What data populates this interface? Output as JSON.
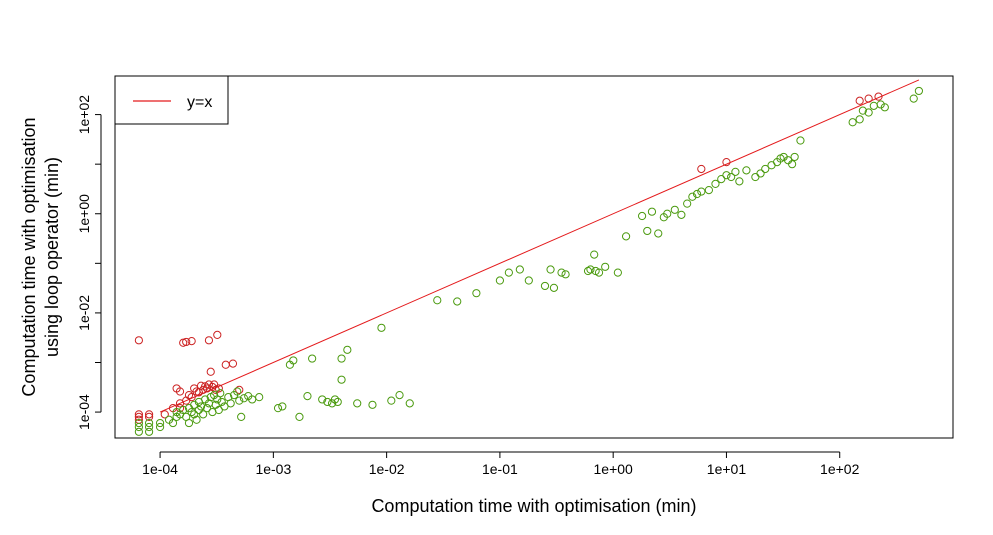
{
  "chart_data": {
    "type": "scatter",
    "title": "",
    "xlabel": "Computation time with optimisation (min)",
    "ylabel": [
      "Computation time with optimisation",
      "using loop operator (min)"
    ],
    "x_scale": "log10",
    "y_scale": "log10",
    "xlim": [
      4e-05,
      1000
    ],
    "ylim": [
      3e-05,
      600
    ],
    "x_ticks": [
      0.0001,
      0.001,
      0.01,
      0.1,
      1,
      10,
      100
    ],
    "x_tick_labels": [
      "1e-04",
      "1e-03",
      "1e-02",
      "1e-01",
      "1e+00",
      "1e+01",
      "1e+02"
    ],
    "y_ticks": [
      0.0001,
      0.001,
      0.01,
      0.1,
      1,
      10,
      100
    ],
    "y_tick_labels": [
      "1e-04",
      "",
      "1e-02",
      "",
      "1e+00",
      "",
      "1e+02"
    ],
    "grid": false,
    "legend_position": "top-left",
    "legend": [
      {
        "label": "y=x",
        "color": "#e41a1c",
        "kind": "line"
      }
    ],
    "reference_line": {
      "name": "y=x",
      "color": "#e41a1c",
      "from": 0.0001,
      "to": 500
    },
    "colors": {
      "above": "#cc2222",
      "below": "#4a9a0e"
    },
    "series": [
      {
        "color": "#cc2222",
        "points": [
          [
            6.5e-05,
            0.0028
          ],
          [
            6.5e-05,
            9e-05
          ],
          [
            6.5e-05,
            8e-05
          ],
          [
            6.5e-05,
            7e-05
          ],
          [
            8e-05,
            9e-05
          ],
          [
            8e-05,
            8e-05
          ],
          [
            0.00011,
            9e-05
          ],
          [
            0.00013,
            0.00012
          ],
          [
            0.00014,
            0.0003
          ],
          [
            0.00015,
            0.00026
          ],
          [
            0.00015,
            0.00015
          ],
          [
            0.00015,
            0.00012
          ],
          [
            0.00016,
            0.0025
          ],
          [
            0.00017,
            0.0026
          ],
          [
            0.00017,
            0.00017
          ],
          [
            0.00018,
            0.00022
          ],
          [
            0.00019,
            0.0027
          ],
          [
            0.00019,
            0.0002
          ],
          [
            0.0002,
            0.0003
          ],
          [
            0.00021,
            0.00026
          ],
          [
            0.00022,
            0.00025
          ],
          [
            0.00023,
            0.00034
          ],
          [
            0.00024,
            0.00028
          ],
          [
            0.00025,
            0.00033
          ],
          [
            0.00026,
            0.0003
          ],
          [
            0.00027,
            0.0028
          ],
          [
            0.00027,
            0.00036
          ],
          [
            0.00028,
            0.00065
          ],
          [
            0.00029,
            0.00032
          ],
          [
            0.0003,
            0.00036
          ],
          [
            0.00031,
            0.00028
          ],
          [
            0.00032,
            0.0036
          ],
          [
            0.00033,
            0.0003
          ],
          [
            0.00038,
            0.0009
          ],
          [
            0.00044,
            0.00095
          ],
          [
            0.0005,
            0.00028
          ],
          [
            6.0,
            8.0
          ],
          [
            10,
            11
          ],
          [
            150,
            190
          ],
          [
            180,
            210
          ],
          [
            220,
            230
          ]
        ]
      },
      {
        "color": "#4a9a0e",
        "points": [
          [
            6.5e-05,
            4e-05
          ],
          [
            6.5e-05,
            5e-05
          ],
          [
            6.5e-05,
            6e-05
          ],
          [
            8e-05,
            4e-05
          ],
          [
            8e-05,
            5e-05
          ],
          [
            8e-05,
            6e-05
          ],
          [
            0.0001,
            5e-05
          ],
          [
            0.0001,
            6e-05
          ],
          [
            0.00012,
            7e-05
          ],
          [
            0.00013,
            6e-05
          ],
          [
            0.00014,
            8e-05
          ],
          [
            0.00014,
            0.0001
          ],
          [
            0.00015,
            9e-05
          ],
          [
            0.00016,
            0.00011
          ],
          [
            0.00017,
            8e-05
          ],
          [
            0.00018,
            0.00012
          ],
          [
            0.00018,
            6e-05
          ],
          [
            0.00019,
            0.0001
          ],
          [
            0.0002,
            0.00014
          ],
          [
            0.0002,
            9e-05
          ],
          [
            0.00021,
            7e-05
          ],
          [
            0.00022,
            0.00011
          ],
          [
            0.00022,
            0.00016
          ],
          [
            0.00023,
            0.00013
          ],
          [
            0.00024,
            9e-05
          ],
          [
            0.00025,
            0.00018
          ],
          [
            0.00026,
            0.00012
          ],
          [
            0.00027,
            0.00015
          ],
          [
            0.00028,
            0.0002
          ],
          [
            0.00029,
            0.0001
          ],
          [
            0.0003,
            0.00022
          ],
          [
            0.00031,
            0.00014
          ],
          [
            0.00032,
            0.00018
          ],
          [
            0.00033,
            0.00011
          ],
          [
            0.00034,
            0.00024
          ],
          [
            0.00035,
            0.00016
          ],
          [
            0.00037,
            0.00013
          ],
          [
            0.0004,
            0.0002
          ],
          [
            0.00042,
            0.00015
          ],
          [
            0.00045,
            0.00022
          ],
          [
            0.00048,
            0.00026
          ],
          [
            0.0005,
            0.00017
          ],
          [
            0.00052,
            8e-05
          ],
          [
            0.00055,
            0.00019
          ],
          [
            0.0006,
            0.00021
          ],
          [
            0.00065,
            0.00018
          ],
          [
            0.00075,
            0.0002
          ],
          [
            0.0011,
            0.00012
          ],
          [
            0.0012,
            0.00013
          ],
          [
            0.0014,
            0.0009
          ],
          [
            0.0015,
            0.0011
          ],
          [
            0.0017,
            8e-05
          ],
          [
            0.002,
            0.00021
          ],
          [
            0.0022,
            0.0012
          ],
          [
            0.0027,
            0.00018
          ],
          [
            0.003,
            0.00016
          ],
          [
            0.0033,
            0.00015
          ],
          [
            0.0035,
            0.00018
          ],
          [
            0.0037,
            0.00016
          ],
          [
            0.004,
            0.0012
          ],
          [
            0.004,
            0.00045
          ],
          [
            0.0045,
            0.0018
          ],
          [
            0.0055,
            0.00015
          ],
          [
            0.0075,
            0.00014
          ],
          [
            0.009,
            0.005
          ],
          [
            0.011,
            0.00017
          ],
          [
            0.013,
            0.00022
          ],
          [
            0.016,
            0.00015
          ],
          [
            0.028,
            0.018
          ],
          [
            0.042,
            0.017
          ],
          [
            0.062,
            0.025
          ],
          [
            0.1,
            0.045
          ],
          [
            0.12,
            0.065
          ],
          [
            0.15,
            0.075
          ],
          [
            0.18,
            0.045
          ],
          [
            0.25,
            0.035
          ],
          [
            0.28,
            0.075
          ],
          [
            0.3,
            0.032
          ],
          [
            0.35,
            0.065
          ],
          [
            0.38,
            0.06
          ],
          [
            0.6,
            0.07
          ],
          [
            0.63,
            0.075
          ],
          [
            0.68,
            0.15
          ],
          [
            0.7,
            0.07
          ],
          [
            0.75,
            0.065
          ],
          [
            0.85,
            0.085
          ],
          [
            1.1,
            0.065
          ],
          [
            1.3,
            0.35
          ],
          [
            1.8,
            0.9
          ],
          [
            2.0,
            0.45
          ],
          [
            2.2,
            1.1
          ],
          [
            2.5,
            0.4
          ],
          [
            2.8,
            0.85
          ],
          [
            3.0,
            1.0
          ],
          [
            3.5,
            1.2
          ],
          [
            4.0,
            0.95
          ],
          [
            4.5,
            1.6
          ],
          [
            5.0,
            2.2
          ],
          [
            5.5,
            2.5
          ],
          [
            6.0,
            2.8
          ],
          [
            7.0,
            3.0
          ],
          [
            8.0,
            4.0
          ],
          [
            9.0,
            5.0
          ],
          [
            10,
            6.0
          ],
          [
            11,
            5.5
          ],
          [
            12,
            7.0
          ],
          [
            13,
            4.5
          ],
          [
            15,
            7.5
          ],
          [
            18,
            5.5
          ],
          [
            20,
            6.5
          ],
          [
            22,
            8.0
          ],
          [
            25,
            9.5
          ],
          [
            28,
            11
          ],
          [
            30,
            13
          ],
          [
            32,
            14
          ],
          [
            35,
            12
          ],
          [
            38,
            10
          ],
          [
            40,
            14
          ],
          [
            45,
            30
          ],
          [
            130,
            70
          ],
          [
            150,
            80
          ],
          [
            160,
            120
          ],
          [
            180,
            110
          ],
          [
            200,
            150
          ],
          [
            230,
            160
          ],
          [
            250,
            140
          ],
          [
            450,
            210
          ],
          [
            500,
            300
          ]
        ]
      }
    ]
  }
}
